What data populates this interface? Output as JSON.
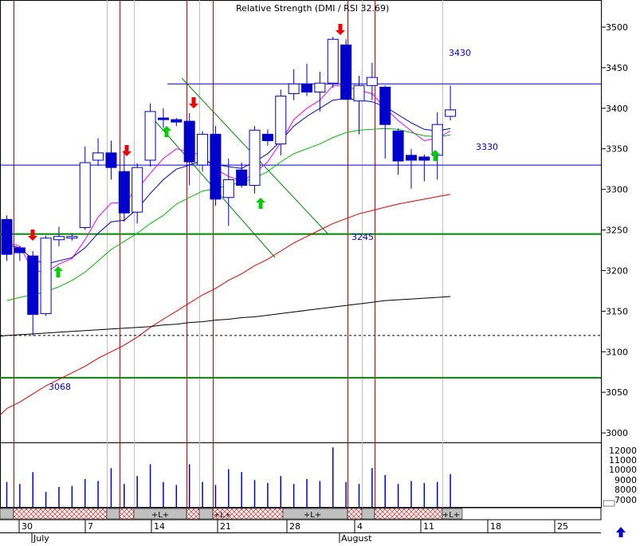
{
  "chart_data": {
    "type": "candlestick",
    "title_overlay": "Relative Strength (DMI / RSI 32.69)",
    "y_axis": {
      "ticks": [
        3500,
        3450,
        3400,
        3350,
        3300,
        3250,
        3200,
        3150,
        3100,
        3050,
        3000
      ],
      "range": [
        2990,
        3540
      ]
    },
    "volume_axis": {
      "ticks": [
        "12000",
        "11000",
        "10000",
        "9000",
        "8000",
        "7000"
      ]
    },
    "x_axis": {
      "tick_labels": [
        "30",
        "7",
        "14",
        "21",
        "28",
        "4",
        "11",
        "18",
        "25"
      ],
      "month_labels": [
        "July",
        "August"
      ]
    },
    "candles": [
      {
        "o": 3263,
        "h": 3268,
        "l": 3212,
        "c": 3220
      },
      {
        "o": 3228,
        "h": 3230,
        "l": 3212,
        "c": 3222
      },
      {
        "o": 3218,
        "h": 3224,
        "l": 3120,
        "c": 3146
      },
      {
        "o": 3147,
        "h": 3243,
        "l": 3144,
        "c": 3240
      },
      {
        "o": 3238,
        "h": 3254,
        "l": 3230,
        "c": 3242
      },
      {
        "o": 3240,
        "h": 3246,
        "l": 3237,
        "c": 3242
      },
      {
        "o": 3253,
        "h": 3353,
        "l": 3250,
        "c": 3333
      },
      {
        "o": 3336,
        "h": 3363,
        "l": 3329,
        "c": 3345
      },
      {
        "o": 3345,
        "h": 3360,
        "l": 3312,
        "c": 3327
      },
      {
        "o": 3322,
        "h": 3348,
        "l": 3260,
        "c": 3271
      },
      {
        "o": 3272,
        "h": 3332,
        "l": 3258,
        "c": 3327
      },
      {
        "o": 3336,
        "h": 3406,
        "l": 3328,
        "c": 3396
      },
      {
        "o": 3388,
        "h": 3400,
        "l": 3376,
        "c": 3386
      },
      {
        "o": 3386,
        "h": 3388,
        "l": 3378,
        "c": 3383
      },
      {
        "o": 3384,
        "h": 3394,
        "l": 3305,
        "c": 3334
      },
      {
        "o": 3330,
        "h": 3372,
        "l": 3322,
        "c": 3368
      },
      {
        "o": 3368,
        "h": 3378,
        "l": 3280,
        "c": 3288
      },
      {
        "o": 3290,
        "h": 3338,
        "l": 3255,
        "c": 3312
      },
      {
        "o": 3324,
        "h": 3333,
        "l": 3302,
        "c": 3305
      },
      {
        "o": 3305,
        "h": 3378,
        "l": 3295,
        "c": 3373
      },
      {
        "o": 3368,
        "h": 3374,
        "l": 3354,
        "c": 3360
      },
      {
        "o": 3356,
        "h": 3423,
        "l": 3342,
        "c": 3415
      },
      {
        "o": 3418,
        "h": 3448,
        "l": 3410,
        "c": 3430
      },
      {
        "o": 3430,
        "h": 3455,
        "l": 3415,
        "c": 3420
      },
      {
        "o": 3420,
        "h": 3445,
        "l": 3396,
        "c": 3431
      },
      {
        "o": 3431,
        "h": 3488,
        "l": 3425,
        "c": 3485
      },
      {
        "o": 3478,
        "h": 3485,
        "l": 3410,
        "c": 3411
      },
      {
        "o": 3409,
        "h": 3440,
        "l": 3368,
        "c": 3428
      },
      {
        "o": 3428,
        "h": 3456,
        "l": 3410,
        "c": 3438
      },
      {
        "o": 3426,
        "h": 3428,
        "l": 3338,
        "c": 3380
      },
      {
        "o": 3372,
        "h": 3375,
        "l": 3318,
        "c": 3335
      },
      {
        "o": 3342,
        "h": 3350,
        "l": 3301,
        "c": 3336
      },
      {
        "o": 3340,
        "h": 3343,
        "l": 3310,
        "c": 3336
      },
      {
        "o": 3342,
        "h": 3395,
        "l": 3312,
        "c": 3380
      },
      {
        "o": 3390,
        "h": 3428,
        "l": 3385,
        "c": 3398
      }
    ],
    "moving_averages": [
      {
        "color": "#ff00ff",
        "values": [
          3235,
          3230,
          3200,
          3198,
          3208,
          3215,
          3238,
          3266,
          3283,
          3284,
          3300,
          3320,
          3338,
          3350,
          3346,
          3342,
          3325,
          3316,
          3310,
          3320,
          3334,
          3358,
          3386,
          3400,
          3410,
          3428,
          3427,
          3422,
          3418,
          3400,
          3385,
          3372,
          3360,
          3363,
          3372
        ]
      },
      {
        "color": "#0000cc",
        "values": [
          3232,
          3228,
          3214,
          3208,
          3212,
          3216,
          3228,
          3246,
          3260,
          3262,
          3276,
          3295,
          3312,
          3325,
          3330,
          3336,
          3331,
          3328,
          3326,
          3334,
          3344,
          3360,
          3378,
          3390,
          3400,
          3410,
          3412,
          3410,
          3408,
          3402,
          3392,
          3382,
          3374,
          3372,
          3375
        ]
      },
      {
        "color": "#00bb00",
        "values": [
          3163,
          3167,
          3170,
          3174,
          3180,
          3188,
          3198,
          3212,
          3226,
          3236,
          3246,
          3258,
          3268,
          3282,
          3290,
          3298,
          3301,
          3305,
          3309,
          3314,
          3322,
          3334,
          3344,
          3350,
          3356,
          3364,
          3370,
          3373,
          3374,
          3375,
          3374,
          3370,
          3366,
          3365,
          3367
        ]
      },
      {
        "color": "#dd0000",
        "values": [
          3030,
          3038,
          3048,
          3058,
          3066,
          3074,
          3082,
          3092,
          3100,
          3108,
          3118,
          3130,
          3140,
          3150,
          3160,
          3170,
          3178,
          3188,
          3196,
          3206,
          3214,
          3224,
          3234,
          3242,
          3250,
          3258,
          3264,
          3270,
          3274,
          3278,
          3282,
          3285,
          3288,
          3291,
          3294
        ]
      },
      {
        "color": "#000000",
        "values": [
          3120,
          3121,
          3122,
          3123,
          3124,
          3125,
          3126,
          3127,
          3128,
          3129,
          3130,
          3131,
          3133,
          3134,
          3136,
          3137,
          3139,
          3140,
          3142,
          3143,
          3145,
          3147,
          3149,
          3151,
          3153,
          3155,
          3157,
          3159,
          3161,
          3163,
          3164,
          3165,
          3166,
          3167,
          3168
        ]
      }
    ],
    "horizontal_levels": [
      {
        "value": 3430,
        "label": "3430",
        "color": "#0000cc"
      },
      {
        "value": 3330,
        "label": "3330",
        "color": "#0000cc"
      },
      {
        "value": 3245,
        "label": "3245",
        "color": "#008800"
      },
      {
        "value": 3068,
        "label": "3068",
        "color": "#008800"
      },
      {
        "value": 3120,
        "label": "",
        "color": "#000000",
        "dashed": true
      }
    ],
    "volume": [
      8800,
      8600,
      9800,
      7800,
      8300,
      8400,
      9100,
      8900,
      10200,
      8600,
      9400,
      10600,
      8800,
      8500,
      10600,
      8800,
      8500,
      10100,
      9800,
      9000,
      8700,
      9400,
      8600,
      9100,
      8900,
      12300,
      8800,
      8600,
      10200,
      9500,
      8600,
      8900,
      8700,
      8800,
      9600
    ],
    "bottom_strip_markers": [
      "+L+",
      "+L+",
      "+L+",
      "+L+"
    ]
  }
}
